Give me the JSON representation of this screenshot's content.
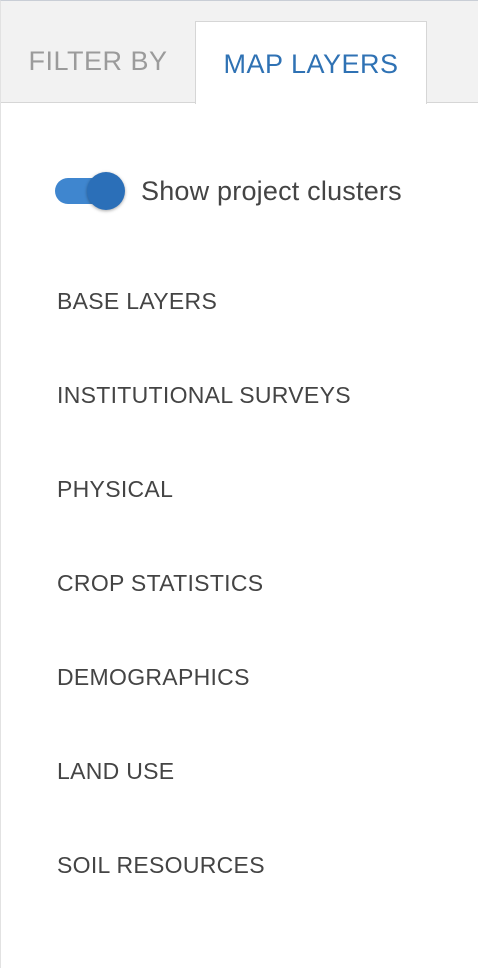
{
  "tabs": [
    {
      "label": "FILTER BY",
      "active": false
    },
    {
      "label": "MAP LAYERS",
      "active": true
    }
  ],
  "toggle": {
    "label": "Show project clusters",
    "on": true
  },
  "layers": [
    {
      "label": "BASE LAYERS"
    },
    {
      "label": "INSTITUTIONAL SURVEYS"
    },
    {
      "label": "PHYSICAL"
    },
    {
      "label": "CROP STATISTICS"
    },
    {
      "label": "DEMOGRAPHICS"
    },
    {
      "label": "LAND USE"
    },
    {
      "label": "SOIL RESOURCES"
    }
  ],
  "colors": {
    "accent": "#2f72b4",
    "toggle_track": "#3f86cf",
    "toggle_knob": "#2b6fb8",
    "inactive_tab_text": "#9b9b9b",
    "body_text": "#444444"
  }
}
